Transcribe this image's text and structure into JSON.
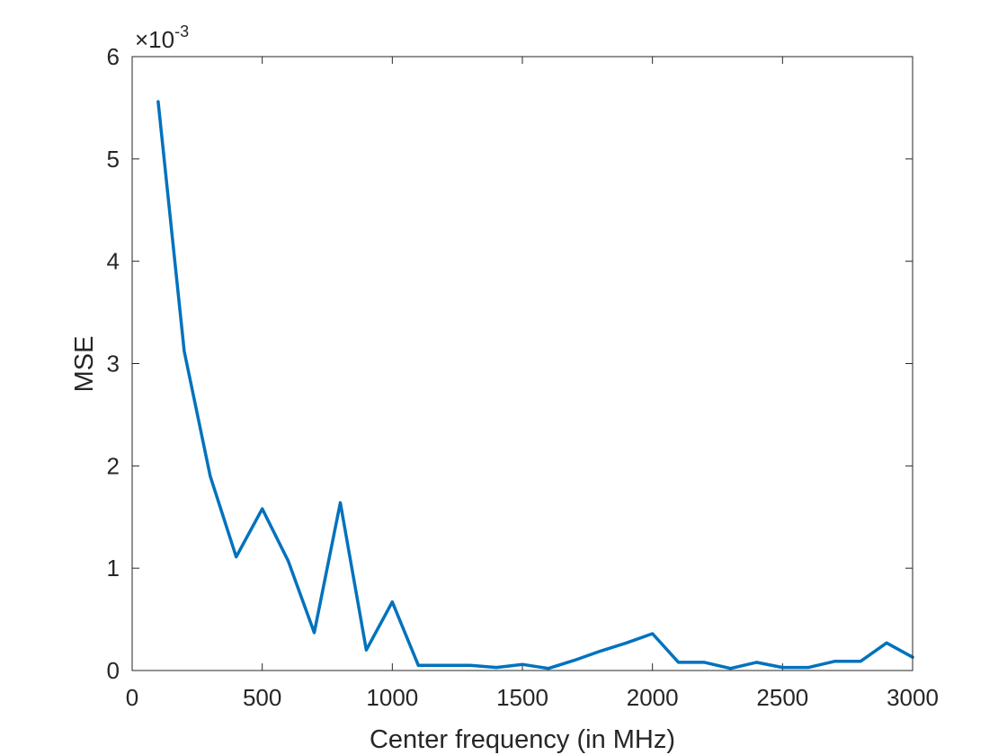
{
  "chart_data": {
    "type": "line",
    "xlabel": "Center frequency (in MHz)",
    "ylabel": "MSE",
    "xlim": [
      0,
      3000
    ],
    "ylim": [
      0,
      6
    ],
    "y_exponent_label": {
      "base": "×10",
      "exponent": "-3"
    },
    "xticks": [
      0,
      500,
      1000,
      1500,
      2000,
      2500,
      3000
    ],
    "xtick_labels": [
      "0",
      "500",
      "1000",
      "1500",
      "2000",
      "2500",
      "3000"
    ],
    "yticks": [
      0,
      1,
      2,
      3,
      4,
      5,
      6
    ],
    "ytick_labels": [
      "0",
      "1",
      "2",
      "3",
      "4",
      "5",
      "6"
    ],
    "grid": false,
    "series": [
      {
        "color": "#0072BD",
        "x": [
          100,
          200,
          300,
          400,
          500,
          600,
          700,
          800,
          900,
          1000,
          1100,
          1200,
          1300,
          1400,
          1500,
          1600,
          1700,
          1800,
          1900,
          2000,
          2100,
          2200,
          2300,
          2400,
          2500,
          2600,
          2700,
          2800,
          2900,
          3000
        ],
        "y": [
          5.56,
          3.12,
          1.9,
          1.11,
          1.58,
          1.07,
          0.37,
          1.64,
          0.2,
          0.67,
          0.05,
          0.05,
          0.05,
          0.03,
          0.06,
          0.02,
          0.1,
          0.19,
          0.27,
          0.36,
          0.08,
          0.08,
          0.02,
          0.08,
          0.03,
          0.03,
          0.09,
          0.09,
          0.27,
          0.13
        ]
      }
    ]
  }
}
